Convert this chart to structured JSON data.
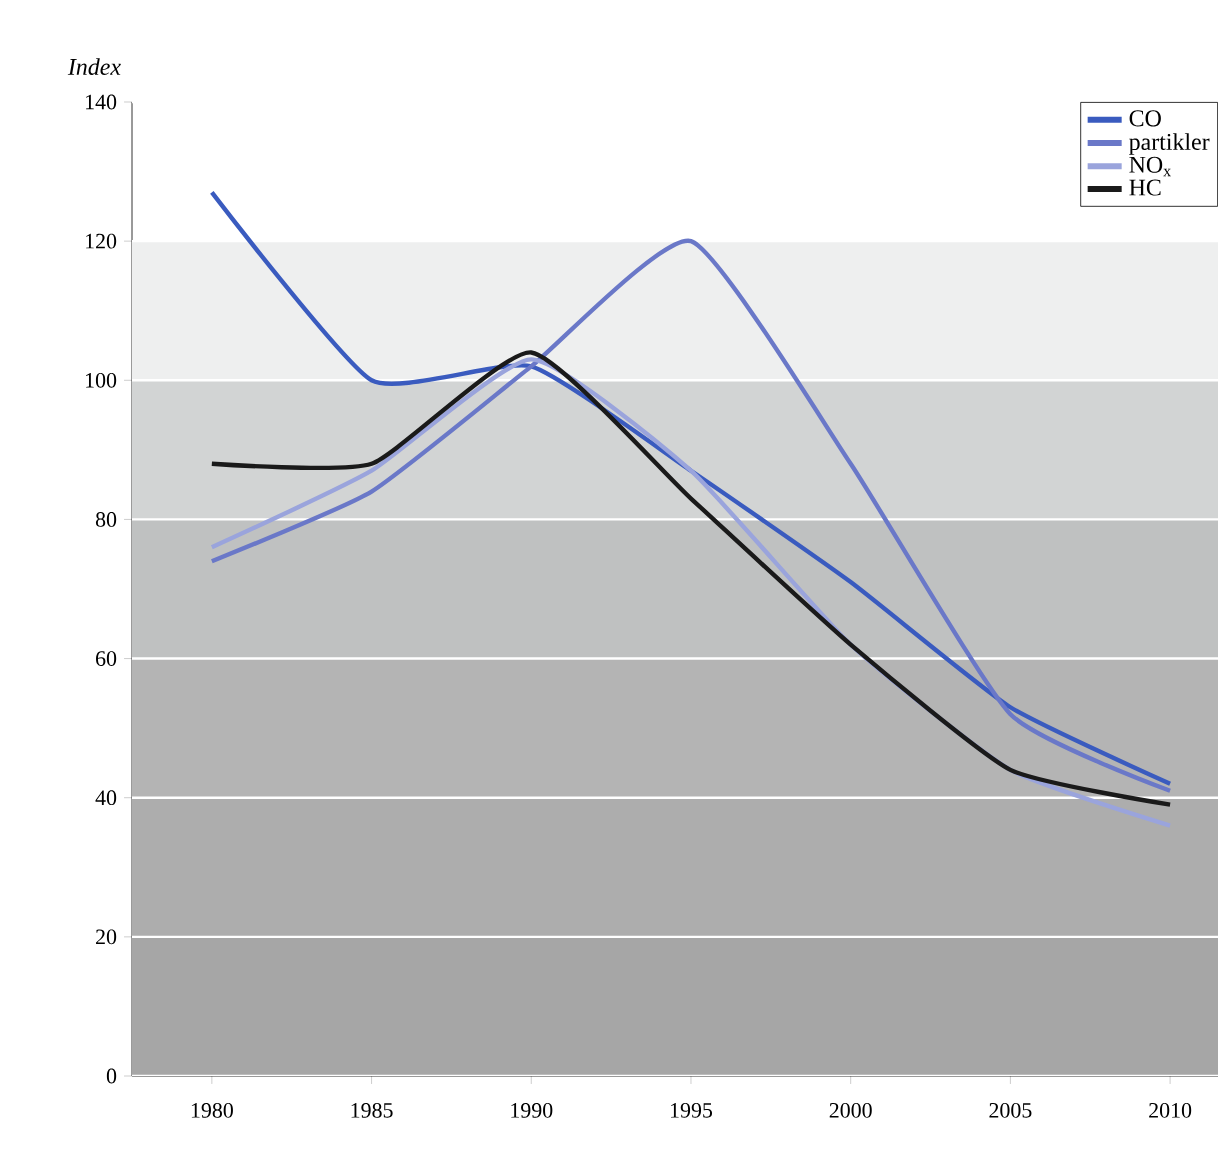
{
  "chart_data": {
    "type": "line",
    "ylabel": "Index",
    "x": [
      1980,
      1985,
      1990,
      1995,
      2000,
      2005,
      2010
    ],
    "series": [
      {
        "name": "CO",
        "color": "#3a5bbf",
        "values": [
          127,
          100,
          102,
          87,
          71,
          53,
          42
        ]
      },
      {
        "name": "partikler",
        "color": "#6a78c8",
        "values": [
          74,
          84,
          102,
          120,
          88,
          52,
          41
        ]
      },
      {
        "name": "NO$_{x}$",
        "color": "#9aa4dc",
        "values": [
          76,
          87,
          103,
          87,
          62,
          44,
          36
        ]
      },
      {
        "name": "HC",
        "color": "#1a1a1a",
        "values": [
          88,
          88,
          104,
          83,
          62,
          44,
          39
        ]
      }
    ],
    "xlim": [
      1977.5,
      2011.5
    ],
    "xticks": [
      1980,
      1985,
      1990,
      1995,
      2000,
      2005,
      2010
    ],
    "ylim": [
      0,
      140
    ],
    "yticks": [
      0,
      20,
      40,
      60,
      80,
      100,
      120,
      140
    ],
    "bands": [
      {
        "axis": "y",
        "from": 0,
        "to": 20,
        "color": "#a6a6a6"
      },
      {
        "axis": "y",
        "from": 20,
        "to": 40,
        "color": "#adadad"
      },
      {
        "axis": "y",
        "from": 40,
        "to": 60,
        "color": "#b4b4b4"
      },
      {
        "axis": "y",
        "from": 60,
        "to": 80,
        "color": "#bfc1c1"
      },
      {
        "axis": "y",
        "from": 80,
        "to": 100,
        "color": "#d2d4d4"
      },
      {
        "axis": "y",
        "from": 100,
        "to": 120,
        "color": "#eeefef"
      }
    ],
    "grid": "y",
    "legend": "top right",
    "marker": "none",
    "line_style": "solid"
  }
}
